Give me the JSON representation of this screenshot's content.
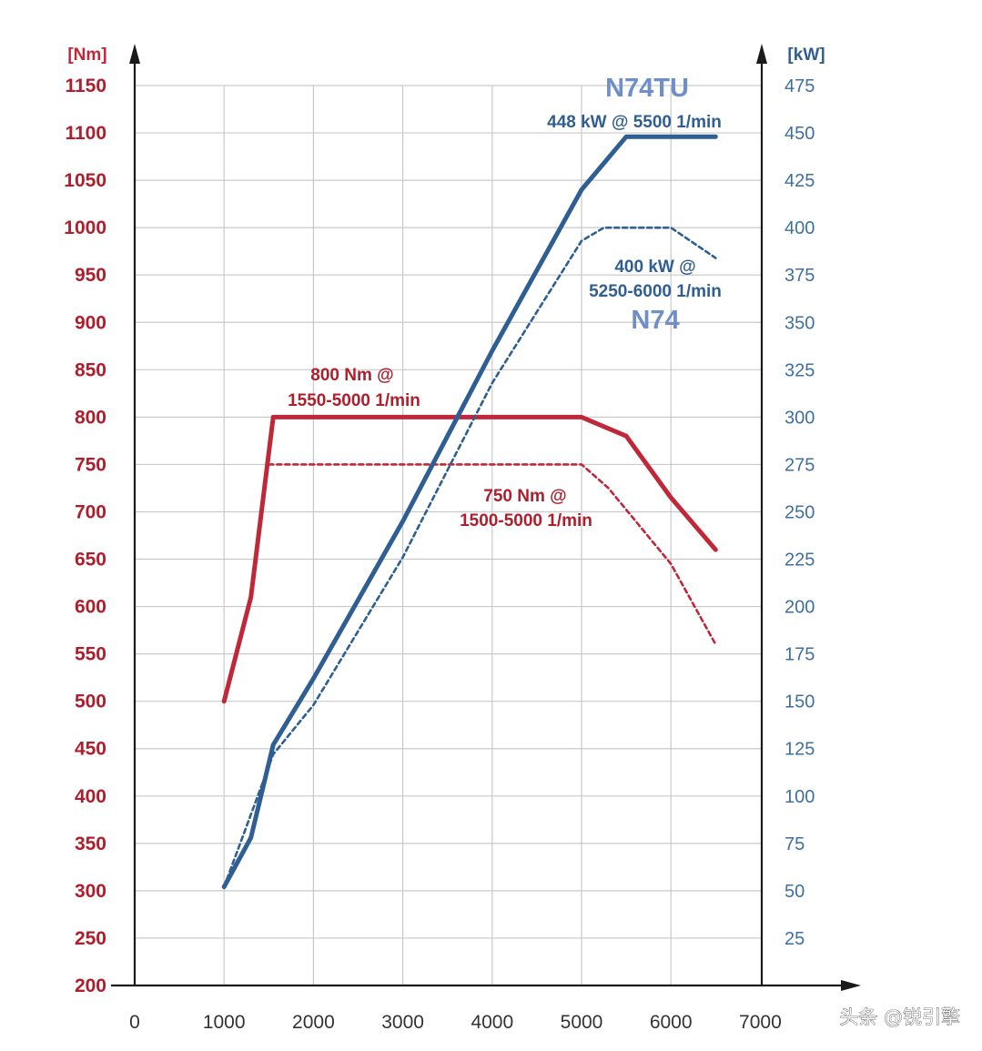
{
  "chart_data": {
    "type": "line",
    "title": "",
    "left_axis": {
      "unit": "[Nm]",
      "ticks": [
        "1150",
        "1100",
        "1050",
        "1000",
        "950",
        "900",
        "850",
        "800",
        "750",
        "700",
        "650",
        "600",
        "550",
        "500",
        "450",
        "400",
        "350",
        "300",
        "250",
        "200"
      ],
      "ylim": [
        200,
        1150
      ]
    },
    "right_axis": {
      "unit": "[kW]",
      "ticks": [
        "475",
        "450",
        "425",
        "400",
        "375",
        "350",
        "325",
        "300",
        "275",
        "250",
        "225",
        "200",
        "175",
        "150",
        "125",
        "100",
        "75",
        "50",
        "25"
      ],
      "ylim": [
        0,
        475
      ]
    },
    "x_axis": {
      "unit": "1/min",
      "ticks": [
        "0",
        "1000",
        "2000",
        "3000",
        "4000",
        "5000",
        "6000",
        "7000"
      ],
      "xlim": [
        0,
        7000
      ]
    },
    "series": [
      {
        "name": "N74TU torque",
        "axis": "left",
        "style": "solid",
        "color": "#c0283a",
        "points": [
          [
            1000,
            500
          ],
          [
            1300,
            610
          ],
          [
            1550,
            800
          ],
          [
            5000,
            800
          ],
          [
            5500,
            780
          ],
          [
            6000,
            715
          ],
          [
            6500,
            660
          ]
        ]
      },
      {
        "name": "N74 torque",
        "axis": "left",
        "style": "dashed",
        "color": "#c0283a",
        "points": [
          [
            1500,
            750
          ],
          [
            5000,
            750
          ],
          [
            5300,
            725
          ],
          [
            6000,
            645
          ],
          [
            6500,
            560
          ]
        ]
      },
      {
        "name": "N74TU power",
        "axis": "right",
        "style": "solid",
        "color": "#2f5f92",
        "points": [
          [
            1000,
            52
          ],
          [
            1300,
            78
          ],
          [
            1550,
            127
          ],
          [
            2000,
            162
          ],
          [
            3000,
            245
          ],
          [
            4000,
            335
          ],
          [
            5000,
            420
          ],
          [
            5500,
            448
          ],
          [
            6500,
            448
          ]
        ]
      },
      {
        "name": "N74 power",
        "axis": "right",
        "style": "dashed",
        "color": "#2f5f92",
        "points": [
          [
            1000,
            52
          ],
          [
            1550,
            122
          ],
          [
            2000,
            148
          ],
          [
            3000,
            226
          ],
          [
            4000,
            318
          ],
          [
            5000,
            393
          ],
          [
            5250,
            400
          ],
          [
            6000,
            400
          ],
          [
            6500,
            384
          ]
        ]
      }
    ],
    "annotations": {
      "n74tu_name": "N74TU",
      "n74tu_power": "448 kW @ 5500 1/min",
      "n74_power_line1": "400 kW @",
      "n74_power_line2": "5250-6000 1/min",
      "n74_name": "N74",
      "n74tu_torque_line1": "800 Nm @",
      "n74tu_torque_line2": "1550-5000 1/min",
      "n74_torque_line1": "750 Nm @",
      "n74_torque_line2": "1500-5000 1/min"
    },
    "watermark": "头条 @锐引擎",
    "grid": true
  }
}
